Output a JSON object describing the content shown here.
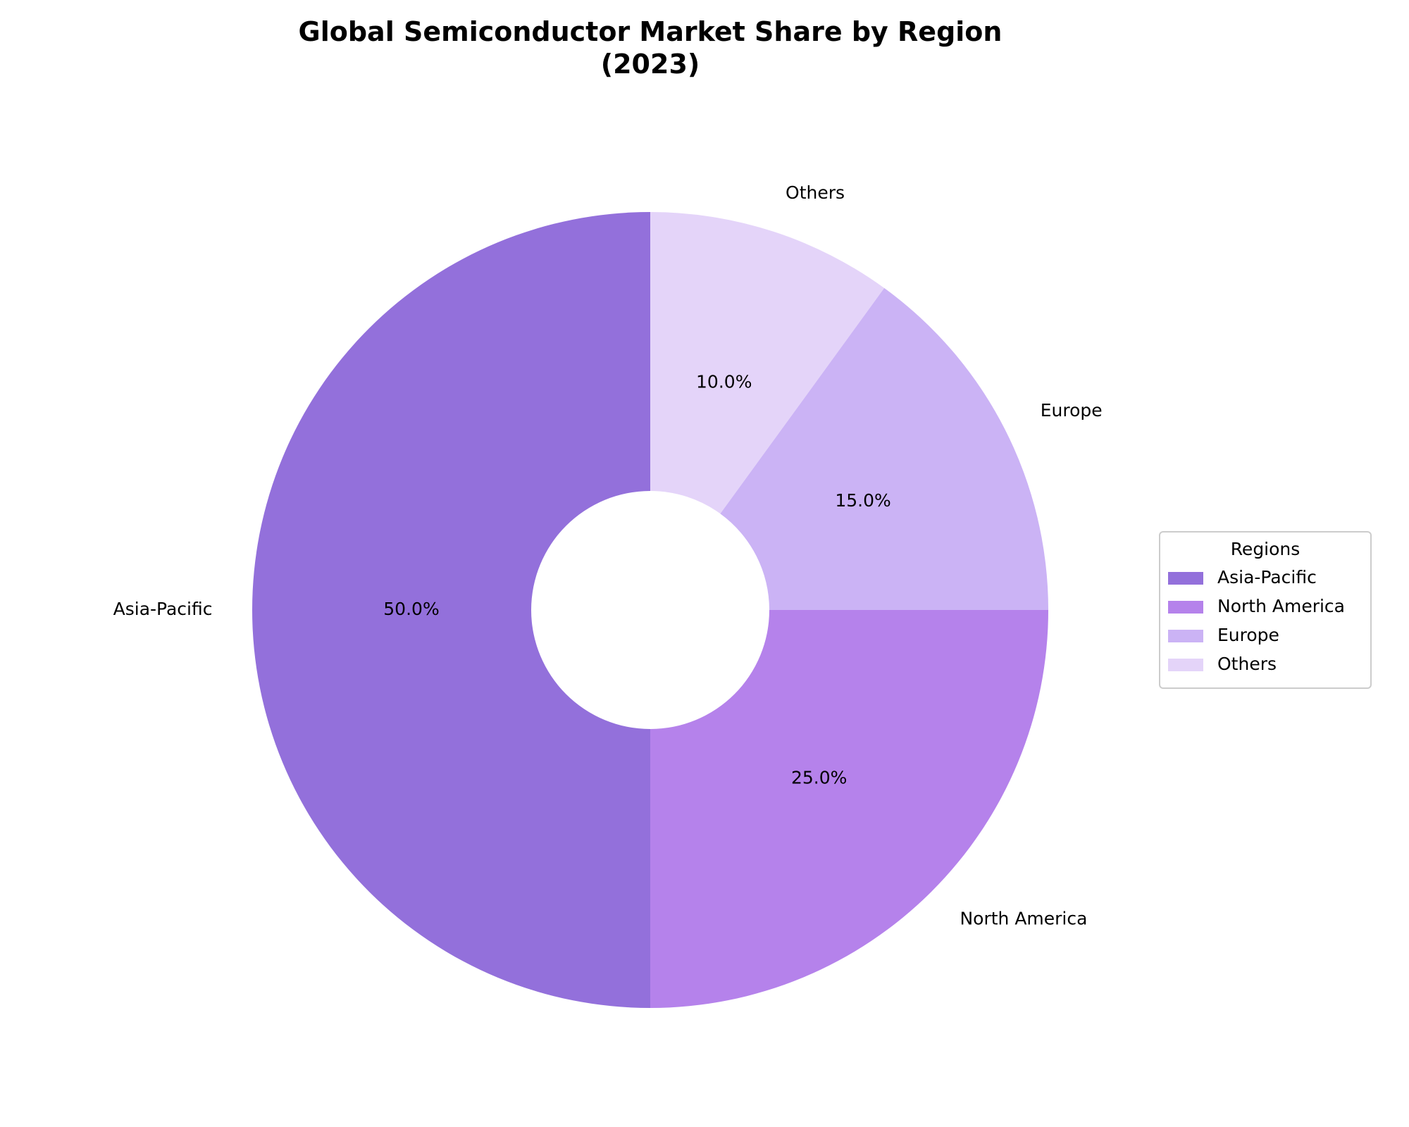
{
  "chart_data": {
    "type": "pie",
    "title": "Global Semiconductor Market Share by Region\n(2023)",
    "categories": [
      "Asia-Pacific",
      "North America",
      "Europe",
      "Others"
    ],
    "values": [
      50,
      25,
      15,
      10
    ],
    "value_labels": [
      "50.0%",
      "25.0%",
      "15.0%",
      "10.0%"
    ],
    "colors": [
      "#9370db",
      "#b582eb",
      "#cbb3f5",
      "#e4d4f9"
    ],
    "legend_title": "Regions",
    "legend": "right"
  }
}
